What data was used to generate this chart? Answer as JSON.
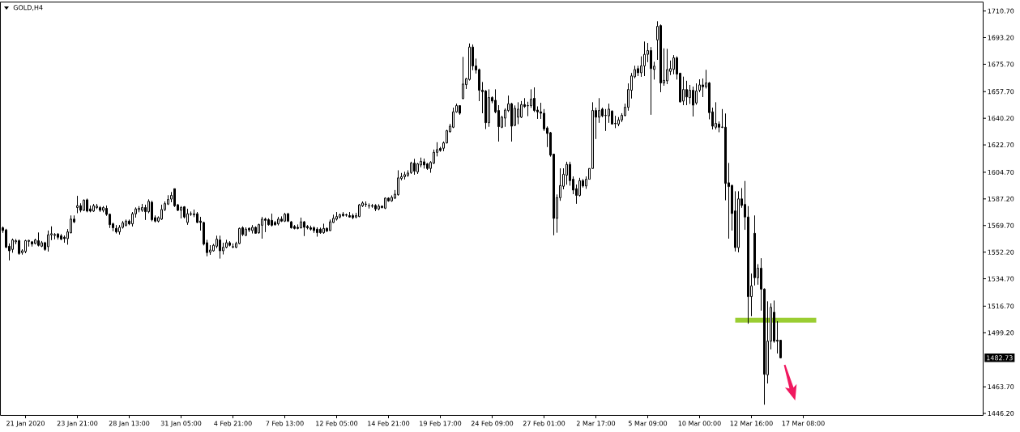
{
  "chart_data": {
    "type": "candlestick",
    "title": "GOLD,H4",
    "color": "#000000",
    "categories": [
      null,
      null,
      null,
      null,
      null,
      null,
      null,
      "21 Jan 2020",
      null,
      null,
      null,
      null,
      null,
      null,
      null,
      null,
      null,
      null,
      null,
      null,
      null,
      null,
      null,
      "23 Jan 21:00",
      null,
      null,
      null,
      null,
      null,
      null,
      null,
      null,
      null,
      null,
      null,
      null,
      null,
      null,
      null,
      "28 Jan 13:00",
      null,
      null,
      null,
      null,
      null,
      null,
      null,
      null,
      null,
      null,
      null,
      null,
      null,
      null,
      null,
      "31 Jan 05:00",
      null,
      null,
      null,
      null,
      null,
      null,
      null,
      null,
      null,
      null,
      null,
      null,
      null,
      null,
      null,
      "4 Feb 21:00",
      null,
      null,
      null,
      null,
      null,
      null,
      null,
      null,
      null,
      null,
      null,
      null,
      null,
      null,
      null,
      "7 Feb 13:00",
      null,
      null,
      null,
      null,
      null,
      null,
      null,
      null,
      null,
      null,
      null,
      null,
      null,
      null,
      null,
      "12 Feb 05:00",
      null,
      null,
      null,
      null,
      null,
      null,
      null,
      null,
      null,
      null,
      null,
      null,
      null,
      null,
      null,
      "14 Feb 21:00",
      null,
      null,
      null,
      null,
      null,
      null,
      null,
      null,
      null,
      null,
      null,
      null,
      null,
      null,
      null,
      "19 Feb 17:00",
      null,
      null,
      null,
      null,
      null,
      null,
      null,
      null,
      null,
      null,
      null,
      null,
      null,
      null,
      null,
      "24 Feb 09:00",
      null,
      null,
      null,
      null,
      null,
      null,
      null,
      null,
      null,
      null,
      null,
      null,
      null,
      null,
      null,
      "27 Feb 01:00",
      null,
      null,
      null,
      null,
      null,
      null,
      null,
      null,
      null,
      null,
      null,
      null,
      null,
      null,
      null,
      "2 Mar 17:00",
      null,
      null,
      null,
      null,
      null,
      null,
      null,
      null,
      null,
      null,
      null,
      null,
      null,
      null,
      null,
      "5 Mar 09:00",
      null,
      null,
      null,
      null,
      null,
      null,
      null,
      null,
      null,
      null,
      null,
      null,
      null,
      null,
      null,
      "10 Mar 00:00",
      null,
      null,
      null,
      null,
      null,
      null,
      null,
      null,
      null,
      null,
      null,
      null,
      null,
      null,
      null,
      "12 Mar 16:00",
      null,
      null,
      null,
      null,
      null,
      null,
      null,
      null,
      null,
      null,
      null,
      null,
      null,
      null,
      null,
      "17 Mar 08:00",
      null,
      null,
      null,
      null,
      null,
      null,
      null,
      null,
      null,
      null,
      null,
      null,
      null,
      null,
      null,
      null,
      null,
      null,
      null,
      null,
      null,
      null,
      null,
      null,
      null,
      null,
      null,
      null,
      null,
      null,
      null,
      null,
      null,
      null,
      null,
      null,
      null,
      null,
      null,
      null,
      null,
      null,
      null,
      null,
      null,
      null,
      null,
      null,
      null,
      null,
      null,
      null,
      null,
      null,
      null
    ],
    "ohlc": [
      [
        1568.2,
        1569.0,
        1565.0,
        1566.4
      ],
      [
        1566.8,
        1567.5,
        1555.0,
        1555.4
      ],
      [
        1556.1,
        1557.9,
        1546.9,
        1553.1
      ],
      [
        1554.0,
        1561.1,
        1551.9,
        1560.2
      ],
      [
        1559.0,
        1560.7,
        1557.5,
        1559.7
      ],
      [
        1559.7,
        1560.5,
        1550.5,
        1551.3
      ],
      [
        1551.9,
        1554.0,
        1550.7,
        1553.1
      ],
      [
        1552.6,
        1560.2,
        1551.5,
        1559.7
      ],
      [
        1559.3,
        1560.2,
        1556.0,
        1559.9
      ],
      [
        1559.0,
        1559.5,
        1556.0,
        1557.5
      ],
      [
        1557.9,
        1561.0,
        1557.3,
        1560.2
      ],
      [
        1559.7,
        1565.0,
        1556.1,
        1556.7
      ],
      [
        1556.1,
        1559.5,
        1555.6,
        1558.4
      ],
      [
        1558.4,
        1559.0,
        1553.1,
        1554.0
      ],
      [
        1555.8,
        1566.4,
        1552.6,
        1563.6
      ],
      [
        1563.6,
        1569.1,
        1560.2,
        1564.3
      ],
      [
        1563.2,
        1564.6,
        1560.7,
        1563.8
      ],
      [
        1564.1,
        1564.6,
        1560.5,
        1562.0
      ],
      [
        1562.9,
        1564.0,
        1560.2,
        1560.7
      ],
      [
        1562.0,
        1563.0,
        1558.4,
        1561.1
      ],
      [
        1561.1,
        1567.3,
        1557.2,
        1565.5
      ],
      [
        1565.0,
        1576.2,
        1564.6,
        1573.9
      ],
      [
        1573.9,
        1576.2,
        1571.4,
        1572.1
      ],
      [
        1581.5,
        1589.1,
        1577.9,
        1582.7
      ],
      [
        1582.7,
        1584.2,
        1578.5,
        1579.7
      ],
      [
        1579.7,
        1586.8,
        1579.2,
        1586.3
      ],
      [
        1586.6,
        1587.3,
        1578.5,
        1579.2
      ],
      [
        1580.6,
        1582.7,
        1578.5,
        1579.2
      ],
      [
        1579.2,
        1583.8,
        1578.8,
        1582.7
      ],
      [
        1581.5,
        1583.8,
        1580.6,
        1582.4
      ],
      [
        1581.5,
        1582.4,
        1578.8,
        1579.7
      ],
      [
        1579.7,
        1582.4,
        1578.5,
        1581.5
      ],
      [
        1581.0,
        1582.7,
        1576.2,
        1577.0
      ],
      [
        1577.1,
        1577.4,
        1568.2,
        1570.3
      ],
      [
        1570.8,
        1571.4,
        1566.1,
        1568.2
      ],
      [
        1567.8,
        1569.9,
        1564.6,
        1565.5
      ],
      [
        1565.5,
        1569.9,
        1563.8,
        1568.5
      ],
      [
        1568.5,
        1572.6,
        1567.8,
        1571.4
      ],
      [
        1569.9,
        1573.5,
        1569.1,
        1572.6
      ],
      [
        1572.6,
        1573.5,
        1570.0,
        1570.8
      ],
      [
        1570.8,
        1578.5,
        1569.1,
        1577.4
      ],
      [
        1577.4,
        1581.5,
        1575.0,
        1580.6
      ],
      [
        1580.1,
        1582.4,
        1578.5,
        1581.0
      ],
      [
        1579.7,
        1583.8,
        1578.8,
        1581.5
      ],
      [
        1581.5,
        1583.3,
        1573.5,
        1578.8
      ],
      [
        1578.8,
        1586.8,
        1577.9,
        1585.6
      ],
      [
        1585.0,
        1585.9,
        1572.6,
        1573.5
      ],
      [
        1574.9,
        1576.2,
        1571.7,
        1572.6
      ],
      [
        1572.6,
        1575.6,
        1571.7,
        1574.9
      ],
      [
        1573.9,
        1583.3,
        1573.5,
        1580.2
      ],
      [
        1580.2,
        1585.5,
        1579.2,
        1584.1
      ],
      [
        1583.8,
        1589.5,
        1583.3,
        1586.8
      ],
      [
        1587.1,
        1591.6,
        1585.0,
        1589.5
      ],
      [
        1593.9,
        1594.0,
        1582.0,
        1582.7
      ],
      [
        1583.3,
        1583.8,
        1579.2,
        1579.7
      ],
      [
        1579.7,
        1582.4,
        1574.4,
        1581.5
      ],
      [
        1582.0,
        1582.4,
        1574.4,
        1575.3
      ],
      [
        1571.7,
        1580.6,
        1570.3,
        1577.4
      ],
      [
        1577.4,
        1578.8,
        1576.2,
        1577.1
      ],
      [
        1576.7,
        1580.2,
        1575.3,
        1577.4
      ],
      [
        1577.4,
        1578.5,
        1571.4,
        1571.7
      ],
      [
        1572.6,
        1575.3,
        1566.4,
        1571.7
      ],
      [
        1571.7,
        1572.0,
        1556.7,
        1557.5
      ],
      [
        1558.4,
        1560.2,
        1549.6,
        1551.9
      ],
      [
        1552.2,
        1556.7,
        1550.5,
        1553.6
      ],
      [
        1553.1,
        1557.5,
        1552.6,
        1556.7
      ],
      [
        1556.1,
        1562.9,
        1554.9,
        1560.7
      ],
      [
        1560.2,
        1562.9,
        1548.1,
        1553.1
      ],
      [
        1553.1,
        1558.4,
        1550.8,
        1555.4
      ],
      [
        1555.4,
        1560.2,
        1554.9,
        1558.4
      ],
      [
        1558.4,
        1559.3,
        1556.1,
        1556.7
      ],
      [
        1555.8,
        1557.9,
        1554.9,
        1555.6
      ],
      [
        1555.4,
        1559.0,
        1554.9,
        1557.9
      ],
      [
        1557.9,
        1568.2,
        1557.5,
        1567.8
      ],
      [
        1568.2,
        1569.1,
        1562.9,
        1563.8
      ],
      [
        1563.2,
        1568.5,
        1562.9,
        1567.3
      ],
      [
        1567.8,
        1568.5,
        1565.5,
        1566.8
      ],
      [
        1566.4,
        1569.9,
        1564.6,
        1568.5
      ],
      [
        1568.5,
        1569.1,
        1564.3,
        1564.6
      ],
      [
        1565.0,
        1570.8,
        1564.3,
        1570.3
      ],
      [
        1569.9,
        1575.3,
        1561.1,
        1573.9
      ],
      [
        1573.9,
        1574.9,
        1565.5,
        1573.1
      ],
      [
        1573.5,
        1574.4,
        1569.6,
        1570.3
      ],
      [
        1573.1,
        1577.4,
        1569.1,
        1569.9
      ],
      [
        1571.7,
        1572.6,
        1569.6,
        1570.3
      ],
      [
        1570.8,
        1575.3,
        1569.9,
        1573.9
      ],
      [
        1573.9,
        1575.6,
        1572.1,
        1572.6
      ],
      [
        1572.6,
        1577.9,
        1572.1,
        1577.1
      ],
      [
        1577.4,
        1577.9,
        1572.1,
        1572.6
      ],
      [
        1572.1,
        1572.6,
        1567.8,
        1568.2
      ],
      [
        1569.1,
        1569.9,
        1567.3,
        1567.8
      ],
      [
        1568.5,
        1570.3,
        1567.3,
        1567.8
      ],
      [
        1568.2,
        1574.9,
        1567.8,
        1572.1
      ],
      [
        1572.1,
        1572.6,
        1562.9,
        1568.5
      ],
      [
        1569.1,
        1569.9,
        1567.3,
        1568.2
      ],
      [
        1568.2,
        1569.6,
        1566.4,
        1567.3
      ],
      [
        1568.2,
        1569.1,
        1565.0,
        1566.4
      ],
      [
        1567.3,
        1568.5,
        1562.5,
        1565.0
      ],
      [
        1567.3,
        1568.2,
        1564.3,
        1565.0
      ],
      [
        1565.0,
        1570.8,
        1564.3,
        1567.8
      ],
      [
        1567.8,
        1568.5,
        1565.5,
        1566.1
      ],
      [
        1566.4,
        1573.5,
        1566.1,
        1572.1
      ],
      [
        1571.7,
        1576.7,
        1571.4,
        1574.4
      ],
      [
        1573.9,
        1578.5,
        1573.1,
        1575.6
      ],
      [
        1575.3,
        1577.4,
        1574.4,
        1576.7
      ],
      [
        1577.1,
        1578.5,
        1575.6,
        1576.2
      ],
      [
        1576.7,
        1577.4,
        1575.6,
        1576.5
      ],
      [
        1576.2,
        1578.5,
        1574.9,
        1575.3
      ],
      [
        1576.2,
        1577.4,
        1573.9,
        1574.9
      ],
      [
        1575.3,
        1577.9,
        1574.4,
        1576.2
      ],
      [
        1575.6,
        1583.8,
        1575.3,
        1583.3
      ],
      [
        1582.7,
        1585.5,
        1582.0,
        1584.5
      ],
      [
        1583.8,
        1585.5,
        1582.0,
        1583.6
      ],
      [
        1582.7,
        1584.1,
        1581.0,
        1582.6
      ],
      [
        1582.7,
        1583.8,
        1581.5,
        1582.4
      ],
      [
        1582.9,
        1583.6,
        1579.3,
        1580.6
      ],
      [
        1580.6,
        1583.6,
        1579.7,
        1582.4
      ],
      [
        1582.4,
        1582.9,
        1581.1,
        1581.5
      ],
      [
        1581.1,
        1588.2,
        1580.6,
        1587.7
      ],
      [
        1587.7,
        1588.2,
        1585.4,
        1585.9
      ],
      [
        1585.9,
        1589.4,
        1585.4,
        1588.2
      ],
      [
        1587.7,
        1593.0,
        1587.1,
        1590.3
      ],
      [
        1590.0,
        1605.9,
        1589.4,
        1601.0
      ],
      [
        1600.6,
        1604.2,
        1599.5,
        1601.8
      ],
      [
        1601.8,
        1604.9,
        1600.1,
        1603.1
      ],
      [
        1602.7,
        1605.9,
        1601.8,
        1604.2
      ],
      [
        1604.5,
        1611.6,
        1603.6,
        1610.7
      ],
      [
        1610.7,
        1613.4,
        1603.1,
        1605.4
      ],
      [
        1604.9,
        1610.7,
        1603.6,
        1610.2
      ],
      [
        1609.5,
        1614.3,
        1608.1,
        1611.9
      ],
      [
        1611.6,
        1613.7,
        1607.2,
        1609.5
      ],
      [
        1610.2,
        1610.7,
        1606.3,
        1607.2
      ],
      [
        1607.2,
        1611.9,
        1604.5,
        1611.2
      ],
      [
        1610.7,
        1619.6,
        1610.2,
        1617.8
      ],
      [
        1617.8,
        1624.4,
        1615.2,
        1619.6
      ],
      [
        1620.4,
        1621.3,
        1618.3,
        1619.0
      ],
      [
        1620.5,
        1624.9,
        1618.7,
        1624.0
      ],
      [
        1624.0,
        1632.5,
        1623.7,
        1632.0
      ],
      [
        1631.5,
        1636.4,
        1630.7,
        1635.0
      ],
      [
        1634.3,
        1647.1,
        1633.8,
        1644.4
      ],
      [
        1644.4,
        1649.7,
        1643.9,
        1648.5
      ],
      [
        1648.5,
        1648.8,
        1642.6,
        1643.5
      ],
      [
        1653.3,
        1680.4,
        1652.7,
        1662.7
      ],
      [
        1662.3,
        1666.6,
        1659.5,
        1666.2
      ],
      [
        1665.7,
        1689.3,
        1665.1,
        1687.0
      ],
      [
        1687.0,
        1688.7,
        1671.9,
        1674.6
      ],
      [
        1674.6,
        1679.3,
        1669.7,
        1671.9
      ],
      [
        1672.2,
        1672.8,
        1651.5,
        1658.6
      ],
      [
        1658.6,
        1663.9,
        1643.5,
        1657.7
      ],
      [
        1658.1,
        1658.6,
        1633.2,
        1637.3
      ],
      [
        1637.3,
        1659.1,
        1634.7,
        1653.8
      ],
      [
        1653.8,
        1654.5,
        1650.2,
        1651.5
      ],
      [
        1652.0,
        1659.1,
        1643.5,
        1644.4
      ],
      [
        1645.3,
        1648.8,
        1624.9,
        1634.7
      ],
      [
        1634.3,
        1641.7,
        1633.8,
        1640.9
      ],
      [
        1640.3,
        1646.7,
        1634.7,
        1645.6
      ],
      [
        1645.3,
        1655.0,
        1644.4,
        1649.7
      ],
      [
        1649.7,
        1650.3,
        1624.9,
        1635.0
      ],
      [
        1635.5,
        1648.5,
        1635.0,
        1646.7
      ],
      [
        1640.9,
        1650.6,
        1636.4,
        1646.2
      ],
      [
        1640.9,
        1651.5,
        1640.3,
        1649.2
      ],
      [
        1649.2,
        1653.3,
        1647.1,
        1647.9
      ],
      [
        1648.5,
        1651.0,
        1641.7,
        1648.4
      ],
      [
        1648.5,
        1659.1,
        1647.1,
        1652.7
      ],
      [
        1653.3,
        1660.4,
        1644.4,
        1645.3
      ],
      [
        1645.6,
        1647.9,
        1639.9,
        1644.4
      ],
      [
        1644.4,
        1650.3,
        1639.9,
        1643.5
      ],
      [
        1643.5,
        1646.2,
        1632.0,
        1633.2
      ],
      [
        1633.8,
        1634.7,
        1621.4,
        1630.2
      ],
      [
        1630.7,
        1631.1,
        1615.1,
        1616.0
      ],
      [
        1616.6,
        1616.9,
        1563.4,
        1574.4
      ],
      [
        1574.4,
        1590.0,
        1565.1,
        1588.0
      ],
      [
        1588.0,
        1607.2,
        1586.0,
        1596.0
      ],
      [
        1595.5,
        1607.2,
        1593.5,
        1603.4
      ],
      [
        1602.8,
        1611.6,
        1596.6,
        1609.9
      ],
      [
        1609.9,
        1611.6,
        1596.0,
        1599.2
      ],
      [
        1600.1,
        1601.9,
        1590.3,
        1593.0
      ],
      [
        1593.9,
        1596.5,
        1584.1,
        1589.5
      ],
      [
        1589.5,
        1601.0,
        1588.9,
        1599.2
      ],
      [
        1599.2,
        1600.1,
        1594.8,
        1595.7
      ],
      [
        1595.7,
        1601.9,
        1593.9,
        1600.1
      ],
      [
        1600.1,
        1607.2,
        1600.1,
        1607.2
      ],
      [
        1607.2,
        1650.6,
        1607.0,
        1645.3
      ],
      [
        1645.3,
        1647.1,
        1626.7,
        1640.9
      ],
      [
        1640.9,
        1653.3,
        1637.3,
        1645.3
      ],
      [
        1646.2,
        1647.1,
        1640.9,
        1641.8
      ],
      [
        1642.1,
        1646.2,
        1632.0,
        1642.0
      ],
      [
        1641.8,
        1649.7,
        1637.3,
        1646.2
      ],
      [
        1644.9,
        1645.3,
        1636.1,
        1636.4
      ],
      [
        1636.8,
        1641.7,
        1633.8,
        1636.6
      ],
      [
        1636.4,
        1640.9,
        1635.0,
        1639.1
      ],
      [
        1639.1,
        1643.5,
        1637.8,
        1642.1
      ],
      [
        1642.1,
        1649.7,
        1641.4,
        1647.4
      ],
      [
        1647.4,
        1663.0,
        1645.3,
        1659.1
      ],
      [
        1658.6,
        1669.8,
        1653.3,
        1668.0
      ],
      [
        1667.5,
        1674.6,
        1666.6,
        1672.2
      ],
      [
        1672.8,
        1674.6,
        1668.0,
        1670.1
      ],
      [
        1670.1,
        1680.8,
        1667.5,
        1674.6
      ],
      [
        1674.6,
        1690.5,
        1668.0,
        1682.2
      ],
      [
        1682.2,
        1689.6,
        1677.2,
        1684.7
      ],
      [
        1684.7,
        1686.9,
        1642.6,
        1672.8
      ],
      [
        1672.3,
        1677.2,
        1665.7,
        1674.4
      ],
      [
        1691.7,
        1703.8,
        1678.6,
        1700.6
      ],
      [
        1701.1,
        1701.7,
        1657.4,
        1663.4
      ],
      [
        1663.4,
        1686.1,
        1661.6,
        1665.1
      ],
      [
        1664.8,
        1685.7,
        1662.7,
        1672.2
      ],
      [
        1671.0,
        1678.1,
        1668.7,
        1672.8
      ],
      [
        1672.3,
        1681.6,
        1669.2,
        1679.9
      ],
      [
        1679.9,
        1680.8,
        1665.7,
        1669.2
      ],
      [
        1669.8,
        1670.1,
        1650.6,
        1651.0
      ],
      [
        1651.5,
        1667.5,
        1648.8,
        1659.1
      ],
      [
        1659.1,
        1664.8,
        1648.8,
        1654.2
      ],
      [
        1653.8,
        1662.1,
        1649.7,
        1658.6
      ],
      [
        1658.6,
        1660.9,
        1641.4,
        1648.8
      ],
      [
        1650.3,
        1663.0,
        1649.2,
        1658.1
      ],
      [
        1658.6,
        1665.7,
        1657.4,
        1662.1
      ],
      [
        1662.1,
        1666.2,
        1654.2,
        1660.9
      ],
      [
        1660.9,
        1671.9,
        1659.8,
        1663.4
      ],
      [
        1663.4,
        1663.9,
        1639.6,
        1643.9
      ],
      [
        1644.4,
        1647.1,
        1632.9,
        1635.0
      ],
      [
        1634.3,
        1650.6,
        1632.9,
        1636.8
      ],
      [
        1636.4,
        1638.0,
        1631.1,
        1634.3
      ],
      [
        1634.4,
        1646.2,
        1633.8,
        1634.3
      ],
      [
        1634.3,
        1643.2,
        1586.4,
        1597.4
      ],
      [
        1597.8,
        1610.7,
        1561.1,
        1595.3
      ],
      [
        1596.0,
        1596.5,
        1566.4,
        1577.6
      ],
      [
        1579.3,
        1592.1,
        1552.8,
        1555.2
      ],
      [
        1555.2,
        1592.1,
        1552.2,
        1587.2
      ],
      [
        1587.2,
        1594.2,
        1581.5,
        1582.9
      ],
      [
        1583.6,
        1598.9,
        1566.9,
        1575.3
      ],
      [
        1575.3,
        1582.4,
        1505.2,
        1523.0
      ],
      [
        1523.0,
        1538.0,
        1510.2,
        1530.0
      ],
      [
        1564.6,
        1576.2,
        1530.4,
        1535.4
      ],
      [
        1535.4,
        1544.2,
        1530.9,
        1541.6
      ],
      [
        1541.6,
        1548.1,
        1513.8,
        1527.9
      ],
      [
        1527.9,
        1528.3,
        1452.0,
        1471.9
      ],
      [
        1471.6,
        1519.8,
        1465.9,
        1493.7
      ],
      [
        1493.7,
        1518.5,
        1488.4,
        1515.9
      ],
      [
        1512.7,
        1520.3,
        1492.8,
        1493.7
      ],
      [
        1494.3,
        1506.7,
        1485.7,
        1493.7
      ],
      [
        1494.3,
        1494.3,
        1482.4,
        1482.73
      ],
      null,
      null,
      null,
      null,
      null,
      null,
      null,
      null,
      null,
      null,
      null,
      null,
      null,
      null,
      null,
      null,
      null,
      null,
      null,
      null,
      null,
      null,
      null,
      null,
      null,
      null,
      null,
      null,
      null,
      null,
      null,
      null,
      null,
      null,
      null,
      null,
      null,
      null,
      null,
      null,
      null,
      null,
      null,
      null,
      null,
      null,
      null,
      null,
      null,
      null,
      null,
      null,
      null,
      null,
      null,
      null,
      null,
      null,
      null,
      null,
      null,
      null
    ],
    "ylim": [
      1444.9,
      1716.6
    ],
    "yticks": [
      {
        "value": 1446.2,
        "label": "1446.20"
      },
      {
        "value": 1463.7,
        "label": "1463.70"
      },
      {
        "value": 1499.2,
        "label": "1499.20"
      },
      {
        "value": 1516.7,
        "label": "1516.70"
      },
      {
        "value": 1534.7,
        "label": "1534.70"
      },
      {
        "value": 1552.2,
        "label": "1552.20"
      },
      {
        "value": 1569.7,
        "label": "1569.70"
      },
      {
        "value": 1587.2,
        "label": "1587.20"
      },
      {
        "value": 1604.7,
        "label": "1604.70"
      },
      {
        "value": 1622.7,
        "label": "1622.70"
      },
      {
        "value": 1640.2,
        "label": "1640.20"
      },
      {
        "value": 1657.7,
        "label": "1657.70"
      },
      {
        "value": 1675.7,
        "label": "1675.70"
      },
      {
        "value": 1693.2,
        "label": "1693.20"
      },
      {
        "value": 1710.7,
        "label": "1710.70"
      }
    ],
    "series": [
      {
        "type": "line",
        "color": "#9acd32",
        "values": [
          null,
          null,
          null,
          null,
          null,
          null,
          null,
          null,
          null,
          null,
          null,
          null,
          null,
          null,
          null,
          null,
          null,
          null,
          null,
          null,
          null,
          null,
          null,
          null,
          null,
          null,
          null,
          null,
          null,
          null,
          null,
          null,
          null,
          null,
          null,
          null,
          null,
          null,
          null,
          null,
          null,
          null,
          null,
          null,
          null,
          null,
          null,
          null,
          null,
          null,
          null,
          null,
          null,
          null,
          null,
          null,
          null,
          null,
          null,
          null,
          null,
          null,
          null,
          null,
          null,
          null,
          null,
          null,
          null,
          null,
          null,
          null,
          null,
          null,
          null,
          null,
          null,
          null,
          null,
          null,
          null,
          null,
          null,
          null,
          null,
          null,
          null,
          null,
          null,
          null,
          null,
          null,
          null,
          null,
          null,
          null,
          null,
          null,
          null,
          null,
          null,
          null,
          null,
          null,
          null,
          null,
          null,
          null,
          null,
          null,
          null,
          null,
          null,
          null,
          null,
          null,
          null,
          null,
          null,
          null,
          null,
          null,
          null,
          null,
          null,
          null,
          null,
          null,
          null,
          null,
          null,
          null,
          null,
          null,
          null,
          null,
          null,
          null,
          null,
          null,
          null,
          null,
          null,
          null,
          null,
          null,
          null,
          null,
          null,
          null,
          null,
          null,
          null,
          null,
          null,
          null,
          null,
          null,
          null,
          null,
          null,
          null,
          null,
          null,
          null,
          null,
          null,
          null,
          null,
          null,
          null,
          null,
          null,
          null,
          null,
          null,
          null,
          null,
          null,
          null,
          null,
          null,
          null,
          null,
          null,
          null,
          null,
          null,
          null,
          null,
          null,
          null,
          null,
          null,
          null,
          null,
          null,
          null,
          null,
          null,
          null,
          null,
          null,
          null,
          null,
          null,
          null,
          null,
          null,
          null,
          null,
          null,
          null,
          null,
          null,
          null,
          null,
          null,
          null,
          null,
          null,
          null,
          null,
          null,
          null,
          null,
          1507.5,
          1507.5,
          1507.5,
          1507.5,
          1507.5,
          1507.5,
          1507.5,
          1507.5,
          1507.5,
          1507.5,
          1507.5,
          1507.5,
          1507.5,
          1507.5,
          1507.5,
          1507.5,
          1507.5,
          1507.5,
          1507.5,
          1507.5,
          1507.5,
          1507.5,
          1507.5,
          1507.5,
          1507.5,
          1507.5,
          null,
          null,
          null,
          null,
          null,
          null,
          null,
          null,
          null,
          null,
          null,
          null,
          null,
          null,
          null,
          null,
          null,
          null,
          null,
          null,
          null,
          null,
          null,
          null,
          null,
          null,
          null,
          null,
          null,
          null,
          null,
          null,
          null,
          null,
          null,
          null,
          null,
          null,
          null,
          null,
          null,
          null,
          null,
          null,
          null,
          null,
          null,
          null,
          null,
          null,
          null
        ]
      }
    ],
    "annotations": [
      "1482.73"
    ]
  }
}
